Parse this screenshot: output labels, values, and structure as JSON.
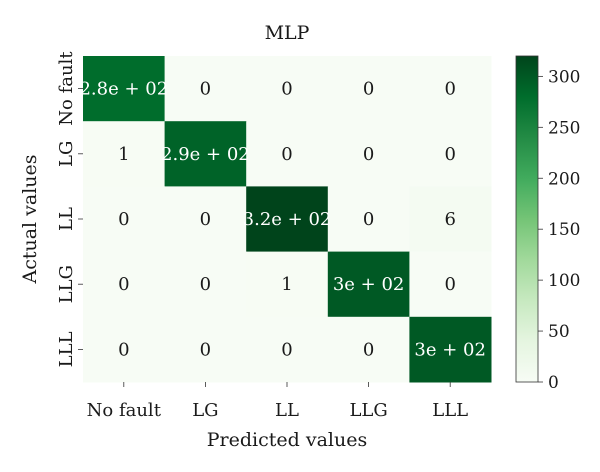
{
  "chart_data": {
    "type": "heatmap",
    "title": "MLP",
    "xlabel": "Predicted values",
    "ylabel": "Actual values",
    "x_categories": [
      "No fault",
      "LG",
      "LL",
      "LLG",
      "LLL"
    ],
    "y_categories": [
      "No fault",
      "LG",
      "LL",
      "LLG",
      "LLL"
    ],
    "values": [
      [
        280,
        0,
        0,
        0,
        0
      ],
      [
        1,
        290,
        0,
        0,
        0
      ],
      [
        0,
        0,
        320,
        0,
        6
      ],
      [
        0,
        0,
        1,
        300,
        0
      ],
      [
        0,
        0,
        0,
        0,
        300
      ]
    ],
    "cell_labels": [
      [
        "2.8e + 02",
        "0",
        "0",
        "0",
        "0"
      ],
      [
        "1",
        "2.9e + 02",
        "0",
        "0",
        "0"
      ],
      [
        "0",
        "0",
        "3.2e + 02",
        "0",
        "6"
      ],
      [
        "0",
        "0",
        "1",
        "3e + 02",
        "0"
      ],
      [
        "0",
        "0",
        "0",
        "0",
        "3e + 02"
      ]
    ],
    "colorbar": {
      "range": [
        0,
        320
      ],
      "ticks": [
        0,
        50,
        100,
        150,
        200,
        250,
        300
      ],
      "tick_labels": [
        "0",
        "50",
        "100",
        "150",
        "200",
        "250",
        "300"
      ]
    },
    "colormap": "Greens",
    "colors": {
      "low": "#f7fcf5",
      "high": "#00441b"
    }
  }
}
